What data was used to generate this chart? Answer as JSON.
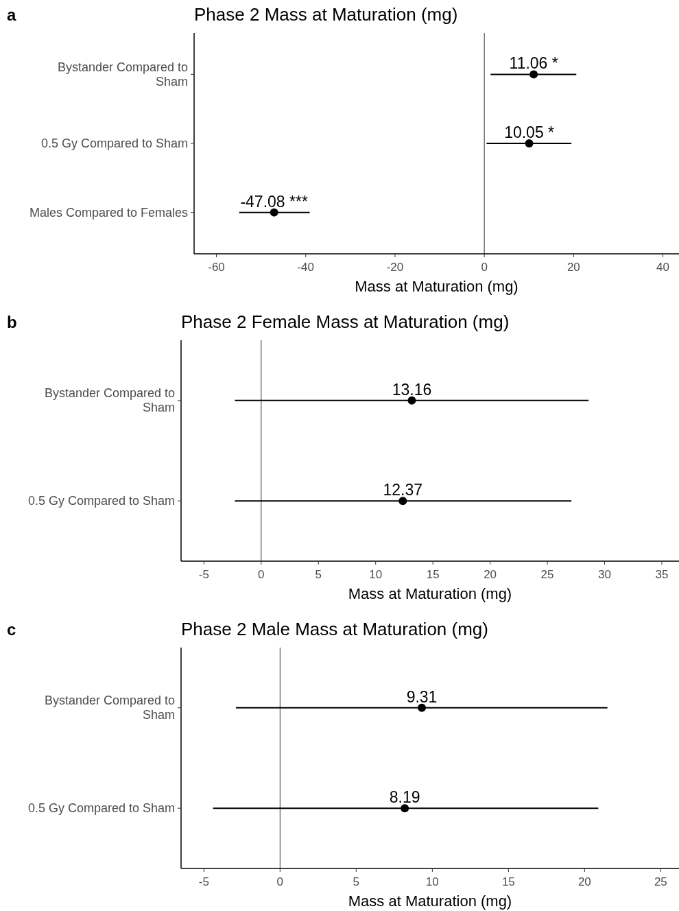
{
  "chart_data": [
    {
      "type": "scatter",
      "orientation": "horizontal",
      "title": "Phase 2 Mass at Maturation (mg)",
      "xlabel": "Mass at Maturation (mg)",
      "annotations": [
        "a"
      ],
      "categories": [
        "Bystander Compared to Sham",
        "0.5 Gy Compared to Sham",
        "Males Compared to Females"
      ],
      "values": [
        11.06,
        10.05,
        -47.08
      ],
      "errors": [
        [
          1.4,
          20.6
        ],
        [
          0.5,
          19.5
        ],
        [
          -54.9,
          -39.1
        ]
      ],
      "value_labels": [
        "11.06 *",
        "10.05 *",
        "-47.08 ***"
      ],
      "color": "#000000",
      "marker": "circle",
      "xlim": [
        -65,
        43.6
      ],
      "xticks": [
        -60,
        -40,
        -20,
        0,
        20,
        40
      ],
      "ref_lines": [
        {
          "axis": "x",
          "value": 0
        }
      ],
      "grid": false
    },
    {
      "type": "scatter",
      "orientation": "horizontal",
      "title": "Phase 2 Female Mass at Maturation (mg)",
      "xlabel": "Mass at Maturation (mg)",
      "annotations": [
        "b"
      ],
      "categories": [
        "Bystander Compared to Sham",
        "0.5 Gy Compared to Sham"
      ],
      "values": [
        13.16,
        12.37
      ],
      "errors": [
        [
          -2.3,
          28.6
        ],
        [
          -2.3,
          27.1
        ]
      ],
      "data_labels": true,
      "color": "#000000",
      "marker": "circle",
      "xlim": [
        -7,
        36.5
      ],
      "xticks": [
        -5,
        0,
        5,
        10,
        15,
        20,
        25,
        30,
        35
      ],
      "ref_lines": [
        {
          "axis": "x",
          "value": 0
        }
      ],
      "grid": false
    },
    {
      "type": "scatter",
      "orientation": "horizontal",
      "title": "Phase 2 Male Mass at Maturation (mg)",
      "xlabel": "Mass at Maturation (mg)",
      "annotations": [
        "c"
      ],
      "categories": [
        "Bystander Compared to Sham",
        "0.5 Gy Compared to Sham"
      ],
      "values": [
        9.31,
        8.19
      ],
      "errors": [
        [
          -2.9,
          21.5
        ],
        [
          -4.4,
          20.9
        ]
      ],
      "data_labels": true,
      "color": "#000000",
      "marker": "circle",
      "xlim": [
        -6.5,
        26.2
      ],
      "xticks": [
        -5,
        0,
        5,
        10,
        15,
        20,
        25
      ],
      "ref_lines": [
        {
          "axis": "x",
          "value": 0
        }
      ],
      "grid": false
    }
  ]
}
